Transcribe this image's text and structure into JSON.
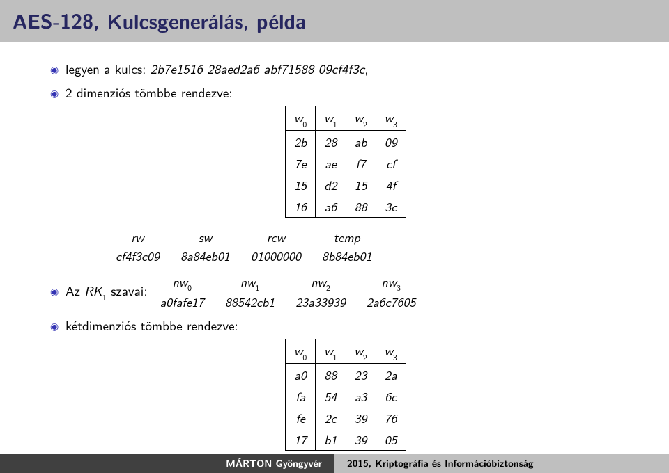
{
  "title": "AES-128, Kulcsgenerálás, példa",
  "bullets": {
    "b1_prefix": "legyen a kulcs: ",
    "b1_hex": "2b7e1516 28aed2a6 abf71588 09cf4f3c",
    "b1_suffix": ",",
    "b2": "2 dimenziós tömbbe rendezve:",
    "b3_prefix": "Az ",
    "b3_rk": "RK",
    "b3_sub": "1",
    "b3_suffix": " szavai:",
    "b4": "kétdimenziós tömbbe rendezve:"
  },
  "table1": {
    "headers": [
      "w",
      "w",
      "w",
      "w"
    ],
    "hsubs": [
      "0",
      "1",
      "2",
      "3"
    ],
    "rows": [
      [
        "2b",
        "28",
        "ab",
        "09"
      ],
      [
        "7e",
        "ae",
        "f7",
        "cf"
      ],
      [
        "15",
        "d2",
        "15",
        "4f"
      ],
      [
        "16",
        "a6",
        "88",
        "3c"
      ]
    ]
  },
  "steprow": {
    "cols": [
      {
        "h": "rw",
        "v": "cf4f3c09"
      },
      {
        "h": "sw",
        "v": "8a84eb01"
      },
      {
        "h": "rcw",
        "v": "01000000"
      },
      {
        "h": "temp",
        "v": "8b84eb01"
      }
    ]
  },
  "nw": {
    "cols": [
      {
        "h": "nw",
        "s": "0",
        "v": "a0fafe17"
      },
      {
        "h": "nw",
        "s": "1",
        "v": "88542cb1"
      },
      {
        "h": "nw",
        "s": "2",
        "v": "23a33939"
      },
      {
        "h": "nw",
        "s": "3",
        "v": "2a6c7605"
      }
    ]
  },
  "table2": {
    "headers": [
      "w",
      "w",
      "w",
      "w"
    ],
    "hsubs": [
      "0",
      "1",
      "2",
      "3"
    ],
    "rows": [
      [
        "a0",
        "88",
        "23",
        "2a"
      ],
      [
        "fa",
        "54",
        "a3",
        "6c"
      ],
      [
        "fe",
        "2c",
        "39",
        "76"
      ],
      [
        "17",
        "b1",
        "39",
        "05"
      ]
    ]
  },
  "footer": {
    "left": "MÁRTON Gyöngyvér",
    "right": "2015, Kriptográfia és Információbiztonság"
  }
}
